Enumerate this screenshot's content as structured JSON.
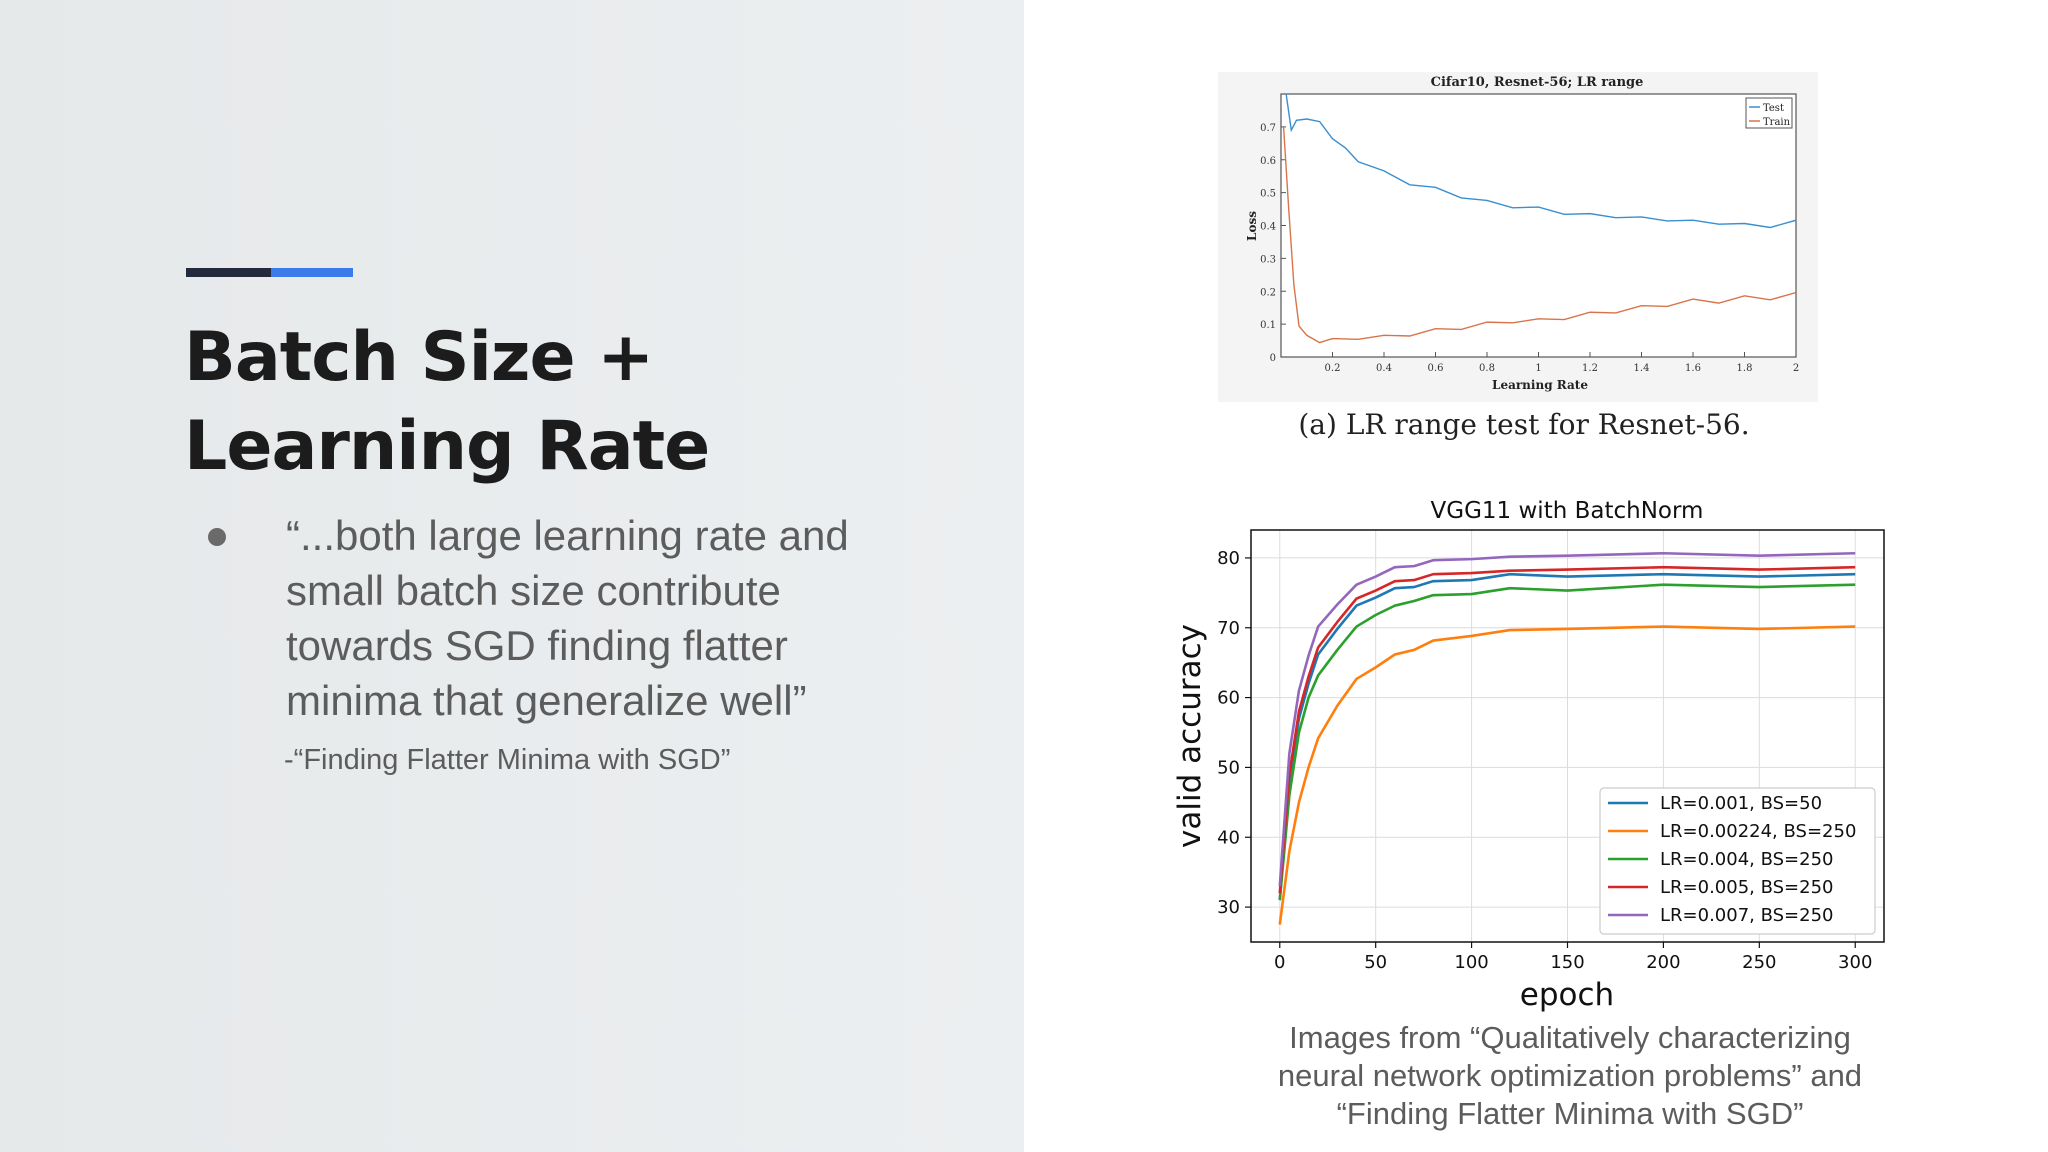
{
  "slide": {
    "title_lines": [
      "Batch Size +",
      "Learning Rate"
    ],
    "quote_lines": [
      "“...both large learning rate and",
      "small batch size contribute",
      "towards SGD finding flatter",
      "minima that generalize well”"
    ],
    "source": "-“Finding Flatter Minima with SGD”",
    "credit_lines": [
      "Images from “Qualitatively characterizing",
      "neural network optimization problems” and",
      "“Finding Flatter Minima with SGD”"
    ],
    "caption_a": "(a) LR range test for Resnet-56.",
    "colors": {
      "accent_dark": "#232a3d",
      "accent_blue": "#3c7bea"
    }
  },
  "chart_data": [
    {
      "type": "line",
      "title": "Cifar10, Resnet-56; LR range",
      "xlabel": "Learning Rate",
      "ylabel": "Loss",
      "xlim": [
        0,
        2
      ],
      "ylim": [
        0,
        0.8
      ],
      "xticks": [
        0.2,
        0.4,
        0.6,
        0.8,
        1,
        1.2,
        1.4,
        1.6,
        1.8,
        2
      ],
      "xtick_labels": [
        "0.2",
        "0.4",
        "0.6",
        "0.8",
        "1",
        "1.2",
        "1.4",
        "1.6",
        "1.8",
        "2"
      ],
      "yticks": [
        0,
        0.1,
        0.2,
        0.3,
        0.4,
        0.5,
        0.6,
        0.7
      ],
      "ytick_labels": [
        "0",
        "0.1",
        "0.2",
        "0.3",
        "0.4",
        "0.5",
        "0.6",
        "0.7"
      ],
      "legend_position": "top-right",
      "series": [
        {
          "name": "Test",
          "color": "#3a8fd0",
          "x": [
            0.02,
            0.04,
            0.06,
            0.1,
            0.15,
            0.2,
            0.25,
            0.3,
            0.4,
            0.5,
            0.6,
            0.7,
            0.8,
            0.9,
            1.0,
            1.1,
            1.2,
            1.3,
            1.4,
            1.5,
            1.6,
            1.7,
            1.8,
            1.9,
            2.0
          ],
          "y": [
            0.8,
            0.69,
            0.72,
            0.73,
            0.71,
            0.67,
            0.63,
            0.6,
            0.56,
            0.53,
            0.51,
            0.49,
            0.47,
            0.46,
            0.45,
            0.44,
            0.43,
            0.43,
            0.42,
            0.42,
            0.41,
            0.41,
            0.4,
            0.4,
            0.41
          ]
        },
        {
          "name": "Train",
          "color": "#d9744a",
          "x": [
            0.01,
            0.03,
            0.05,
            0.07,
            0.1,
            0.15,
            0.2,
            0.3,
            0.4,
            0.5,
            0.6,
            0.7,
            0.8,
            0.9,
            1.0,
            1.1,
            1.2,
            1.3,
            1.4,
            1.5,
            1.6,
            1.7,
            1.8,
            1.9,
            2.0
          ],
          "y": [
            0.7,
            0.45,
            0.22,
            0.1,
            0.06,
            0.05,
            0.05,
            0.06,
            0.06,
            0.07,
            0.08,
            0.09,
            0.1,
            0.11,
            0.11,
            0.12,
            0.13,
            0.14,
            0.15,
            0.16,
            0.17,
            0.17,
            0.18,
            0.18,
            0.19
          ]
        }
      ]
    },
    {
      "type": "line",
      "title": "VGG11 with BatchNorm",
      "xlabel": "epoch",
      "ylabel": "valid accuracy",
      "xlim": [
        -15,
        315
      ],
      "ylim": [
        25,
        84
      ],
      "xticks": [
        0,
        50,
        100,
        150,
        200,
        250,
        300
      ],
      "xtick_labels": [
        "0",
        "50",
        "100",
        "150",
        "200",
        "250",
        "300"
      ],
      "yticks": [
        30,
        40,
        50,
        60,
        70,
        80
      ],
      "ytick_labels": [
        "30",
        "40",
        "50",
        "60",
        "70",
        "80"
      ],
      "grid": true,
      "legend_position": "lower-right",
      "x": [
        0,
        5,
        10,
        15,
        20,
        30,
        40,
        50,
        60,
        70,
        80,
        100,
        120,
        150,
        200,
        250,
        300
      ],
      "series": [
        {
          "name": "LR=0.001, BS=50",
          "color": "#1f77b4",
          "values": [
            31,
            48,
            57,
            62,
            66,
            70,
            73,
            74.5,
            75.5,
            76,
            76.5,
            77,
            77.5,
            77.5,
            77.5,
            77.5,
            77.5
          ]
        },
        {
          "name": "LR=0.00224, BS=250",
          "color": "#ff7f0e",
          "values": [
            27.5,
            38,
            45,
            50,
            54,
            59,
            62.5,
            64.5,
            66,
            67,
            68,
            69,
            69.5,
            70,
            70,
            70,
            70
          ]
        },
        {
          "name": "LR=0.004, BS=250",
          "color": "#2ca02c",
          "values": [
            31,
            46,
            55,
            60,
            63,
            67,
            70,
            72,
            73,
            74,
            74.5,
            75,
            75.5,
            75.5,
            76,
            76,
            76
          ]
        },
        {
          "name": "LR=0.005, BS=250",
          "color": "#d62728",
          "values": [
            32,
            49,
            58,
            63,
            67,
            71,
            74,
            75.5,
            76.5,
            77,
            77.5,
            78,
            78,
            78.5,
            78.5,
            78.5,
            78.5
          ]
        },
        {
          "name": "LR=0.007, BS=250",
          "color": "#9467bd",
          "values": [
            33,
            52,
            61,
            66,
            70,
            73.5,
            76,
            77.5,
            78.5,
            79,
            79.5,
            80,
            80,
            80.5,
            80.5,
            80.5,
            80.5
          ]
        }
      ]
    }
  ]
}
